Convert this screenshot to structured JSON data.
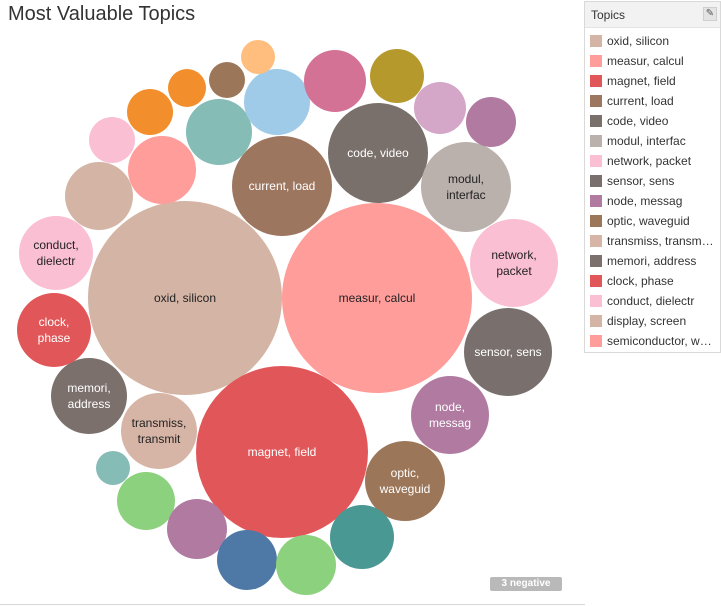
{
  "title": "Most Valuable Topics",
  "negative_badge": "3 negative",
  "legend": {
    "title": "Topics",
    "edit_icon": "pencil-icon",
    "items": [
      {
        "label": "oxid, silicon",
        "color": "#d4b5a5"
      },
      {
        "label": "measur, calcul",
        "color": "#ff9d9a"
      },
      {
        "label": "magnet, field",
        "color": "#e15759"
      },
      {
        "label": "current, load",
        "color": "#9d7660"
      },
      {
        "label": "code, video",
        "color": "#7a706b"
      },
      {
        "label": "modul, interfac",
        "color": "#bab0ac"
      },
      {
        "label": "network, packet",
        "color": "#fabfd2"
      },
      {
        "label": "sensor, sens",
        "color": "#79706e"
      },
      {
        "label": "node, messag",
        "color": "#b07aa1"
      },
      {
        "label": "optic, waveguid",
        "color": "#9c7659"
      },
      {
        "label": "transmiss, transm…",
        "color": "#d7b5a6"
      },
      {
        "label": "memori, address",
        "color": "#7b706c"
      },
      {
        "label": "clock, phase",
        "color": "#e15759"
      },
      {
        "label": "conduct, dielectr",
        "color": "#fabfd2"
      },
      {
        "label": "display, screen",
        "color": "#d4b5a5"
      },
      {
        "label": "semiconductor, w…",
        "color": "#ff9d9a"
      }
    ]
  },
  "chart_data": {
    "type": "bubble",
    "title": "Most Valuable Topics",
    "bubbles": [
      {
        "label": [
          "oxid, silicon"
        ],
        "color": "#d4b5a5",
        "relative_size": 100
      },
      {
        "label": [
          "measur, calcul"
        ],
        "color": "#ff9d9a",
        "relative_size": 100
      },
      {
        "label": [
          "magnet, field"
        ],
        "color": "#e15759",
        "relative_size": 82
      },
      {
        "label": [
          "current, load"
        ],
        "color": "#9d7660",
        "relative_size": 14
      },
      {
        "label": [
          "code, video"
        ],
        "color": "#7a706b",
        "relative_size": 14
      },
      {
        "label": [
          "modul,",
          "interfac"
        ],
        "color": "#bab0ac",
        "relative_size": 11
      },
      {
        "label": [
          "network,",
          "packet"
        ],
        "color": "#fabfd2",
        "relative_size": 11
      },
      {
        "label": [
          "sensor, sens"
        ],
        "color": "#79706e",
        "relative_size": 11
      },
      {
        "label": [
          "node,",
          "messag"
        ],
        "color": "#b07aa1",
        "relative_size": 9
      },
      {
        "label": [
          "optic,",
          "waveguid"
        ],
        "color": "#9c7659",
        "relative_size": 9
      },
      {
        "label": [
          "transmiss,",
          "transmit"
        ],
        "color": "#d7b5a6",
        "relative_size": 8
      },
      {
        "label": [
          "memori,",
          "address"
        ],
        "color": "#7b706c",
        "relative_size": 7
      },
      {
        "label": [
          "clock,",
          "phase"
        ],
        "color": "#e15759",
        "relative_size": 7
      },
      {
        "label": [
          "conduct,",
          "dielectr"
        ],
        "color": "#fabfd2",
        "relative_size": 7
      },
      {
        "label": [],
        "color": "#d4b5a5",
        "relative_size": 6
      },
      {
        "label": [],
        "color": "#ff9d9a",
        "relative_size": 6
      },
      {
        "label": [],
        "color": "#86bcb6",
        "relative_size": 6
      },
      {
        "label": [],
        "color": "#a0cbe8",
        "relative_size": 5.5
      },
      {
        "label": [],
        "color": "#d37295",
        "relative_size": 5.5
      },
      {
        "label": [],
        "color": "#b6992d",
        "relative_size": 3.9
      },
      {
        "label": [],
        "color": "#d4a6c8",
        "relative_size": 3.6
      },
      {
        "label": [],
        "color": "#b07aa1",
        "relative_size": 3.3
      },
      {
        "label": [],
        "color": "#fabfd2",
        "relative_size": 3.1
      },
      {
        "label": [],
        "color": "#f28e2b",
        "relative_size": 3.3
      },
      {
        "label": [],
        "color": "#f28e2b",
        "relative_size": 2.2
      },
      {
        "label": [],
        "color": "#9c7659",
        "relative_size": 1.9
      },
      {
        "label": [],
        "color": "#ffbe7d",
        "relative_size": 1.7
      },
      {
        "label": [],
        "color": "#8cd17d",
        "relative_size": 4.3
      },
      {
        "label": [],
        "color": "#b07aa1",
        "relative_size": 4.5
      },
      {
        "label": [],
        "color": "#4e79a7",
        "relative_size": 4.5
      },
      {
        "label": [],
        "color": "#8cd17d",
        "relative_size": 4.8
      },
      {
        "label": [],
        "color": "#499894",
        "relative_size": 5.3
      },
      {
        "label": [],
        "color": "#86bcb6",
        "relative_size": 1.6
      }
    ]
  }
}
